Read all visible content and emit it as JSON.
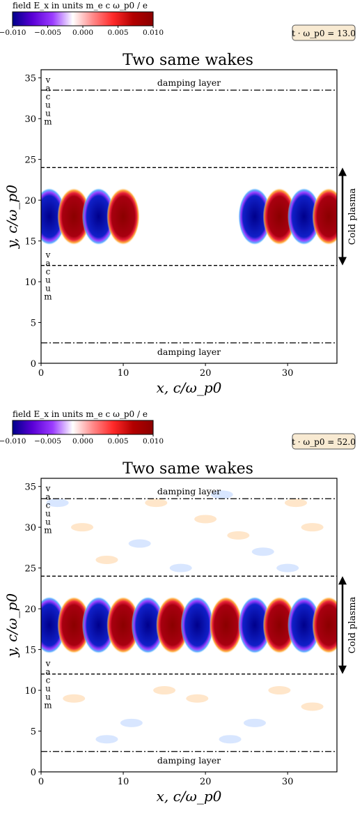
{
  "colorbar": {
    "title": "field E_x in units m_e c ω_p0 / e",
    "ticks": [
      -0.01,
      -0.005,
      0.0,
      0.005,
      0.01
    ],
    "tick_labels": [
      "−0.010",
      "−0.005",
      "0.000",
      "0.005",
      "0.010"
    ],
    "stops": [
      "#00008b",
      "#5a00d6",
      "#9b3cff",
      "#ffffff",
      "#ff8a8a",
      "#ff2a2a",
      "#b30000",
      "#8b0000"
    ]
  },
  "chart_data": [
    {
      "type": "heatmap",
      "title": "Two same wakes",
      "time_label": "t · ω_p0 = 13.0",
      "xlabel": "x, c/ω_p0",
      "ylabel": "y, c/ω_p0",
      "xlim": [
        0,
        36
      ],
      "ylim": [
        0,
        36
      ],
      "xticks": [
        0,
        10,
        20,
        30
      ],
      "yticks": [
        0,
        5,
        10,
        15,
        20,
        25,
        30,
        35
      ],
      "grid": false,
      "damping_lines_y": [
        33.5,
        2.5
      ],
      "plasma_boundaries_y": [
        24,
        12
      ],
      "labels": {
        "damping_top": "damping layer",
        "damping_bottom": "damping layer",
        "vacuum_top": "vacuum",
        "vacuum_bottom": "vacuum",
        "cold_plasma": "Cold plasma"
      },
      "wake_center_y": 18,
      "wake_half_height": 3,
      "wake_blobs": [
        {
          "x": 1.0,
          "sign": -1
        },
        {
          "x": 4.0,
          "sign": 1
        },
        {
          "x": 7.0,
          "sign": -1
        },
        {
          "x": 10.0,
          "sign": 1
        },
        {
          "x": 26.0,
          "sign": -1
        },
        {
          "x": 29.0,
          "sign": 1
        },
        {
          "x": 32.0,
          "sign": -1
        },
        {
          "x": 35.0,
          "sign": 1
        }
      ],
      "noise": false
    },
    {
      "type": "heatmap",
      "title": "Two same wakes",
      "time_label": "t · ω_p0 = 52.0",
      "xlabel": "x, c/ω_p0",
      "ylabel": "y, c/ω_p0",
      "xlim": [
        0,
        36
      ],
      "ylim": [
        0,
        36
      ],
      "xticks": [
        0,
        10,
        20,
        30
      ],
      "yticks": [
        0,
        5,
        10,
        15,
        20,
        25,
        30,
        35
      ],
      "grid": false,
      "damping_lines_y": [
        33.5,
        2.5
      ],
      "plasma_boundaries_y": [
        24,
        12
      ],
      "labels": {
        "damping_top": "damping layer",
        "damping_bottom": "damping layer",
        "vacuum_top": "vacuum",
        "vacuum_bottom": "vacuum",
        "cold_plasma": "Cold plasma"
      },
      "wake_center_y": 18,
      "wake_half_height": 3,
      "wake_blobs": [
        {
          "x": 1.0,
          "sign": -1
        },
        {
          "x": 4.0,
          "sign": 1
        },
        {
          "x": 7.0,
          "sign": -1
        },
        {
          "x": 10.0,
          "sign": 1
        },
        {
          "x": 13.0,
          "sign": -1
        },
        {
          "x": 16.0,
          "sign": 1
        },
        {
          "x": 19.0,
          "sign": -1
        },
        {
          "x": 22.5,
          "sign": 1
        },
        {
          "x": 26.0,
          "sign": -1
        },
        {
          "x": 29.0,
          "sign": 1
        },
        {
          "x": 32.0,
          "sign": -1
        },
        {
          "x": 35.0,
          "sign": 1
        }
      ],
      "noise": true
    }
  ]
}
